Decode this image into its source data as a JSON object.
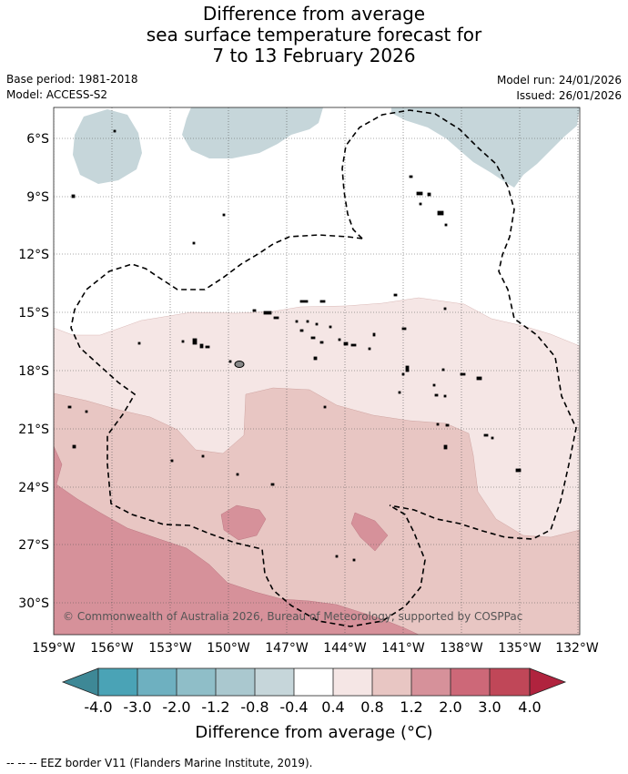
{
  "title": {
    "line1": "Difference from average",
    "line2": "sea surface temperature forecast for",
    "line3": "7 to 13 February 2026"
  },
  "meta": {
    "base_period": "Base period: 1981-2018",
    "model": "Model: ACCESS-S2",
    "model_run": "Model run: 24/01/2026",
    "issued": "Issued: 26/01/2026"
  },
  "map": {
    "lat_labels": [
      "6°S",
      "9°S",
      "12°S",
      "15°S",
      "18°S",
      "21°S",
      "24°S",
      "27°S",
      "30°S"
    ],
    "lon_labels": [
      "159°W",
      "156°W",
      "153°W",
      "150°W",
      "147°W",
      "144°W",
      "141°W",
      "138°W",
      "135°W",
      "132°W"
    ],
    "copyright": "© Commonwealth of Australia 2026, Bureau of Meteorology, supported by COSPPac"
  },
  "colorbar": {
    "labels": [
      "-4.0",
      "-3.0",
      "-2.0",
      "-1.2",
      "-0.8",
      "-0.4",
      "0.4",
      "0.8",
      "1.2",
      "2.0",
      "3.0",
      "4.0"
    ],
    "colors": [
      "#4aa3b6",
      "#6eb0c0",
      "#8fbec8",
      "#aac8cf",
      "#c6d6da",
      "#ffffff",
      "#f5e6e5",
      "#e8c6c3",
      "#d6919a",
      "#cd6878",
      "#c04758"
    ],
    "end_low": "#3e8896",
    "end_high": "#b0233e",
    "title": "Difference from average (°C)"
  },
  "footer": "--  --  -- EEZ border V11 (Flanders Marine Institute, 2019)."
}
